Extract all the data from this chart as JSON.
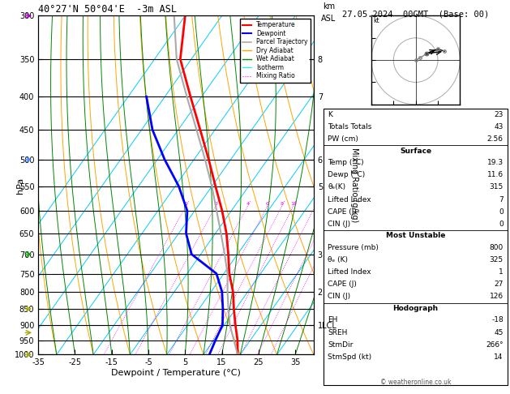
{
  "title_left": "40°27'N 50°04'E  -3m ASL",
  "title_right": "27.05.2024  00GMT  (Base: 00)",
  "xlabel": "Dewpoint / Temperature (°C)",
  "ylabel_left": "hPa",
  "ylabel_right": "Mixing Ratio (g/kg)",
  "pressure_ticks": [
    300,
    350,
    400,
    450,
    500,
    550,
    600,
    650,
    700,
    750,
    800,
    850,
    900,
    950,
    1000
  ],
  "temp_min": -35,
  "temp_max": 40,
  "skew_factor": 65.0,
  "temperature_profile": {
    "pressure": [
      1000,
      950,
      900,
      850,
      800,
      750,
      700,
      650,
      600,
      550,
      500,
      450,
      400,
      350,
      300
    ],
    "temperature": [
      19.3,
      16.5,
      13.0,
      9.5,
      6.0,
      1.5,
      -2.5,
      -7.0,
      -12.5,
      -19.0,
      -26.0,
      -34.0,
      -43.0,
      -53.0,
      -60.0
    ],
    "color": "#ff0000",
    "linewidth": 2.0
  },
  "dewpoint_profile": {
    "pressure": [
      1000,
      950,
      900,
      850,
      800,
      750,
      700,
      650,
      600,
      550,
      500,
      450,
      400
    ],
    "temperature": [
      11.6,
      10.5,
      9.5,
      6.5,
      3.0,
      -2.0,
      -12.5,
      -18.0,
      -22.0,
      -29.0,
      -38.0,
      -47.0,
      -55.0
    ],
    "color": "#0000ff",
    "linewidth": 2.0
  },
  "parcel_profile": {
    "pressure": [
      1000,
      950,
      900,
      850,
      800,
      750,
      700,
      650,
      600,
      550,
      500,
      450,
      400,
      350,
      300
    ],
    "temperature": [
      19.3,
      15.5,
      11.5,
      8.0,
      4.5,
      1.0,
      -3.5,
      -8.5,
      -14.0,
      -20.0,
      -27.0,
      -35.0,
      -44.0,
      -54.0,
      -63.0
    ],
    "color": "#aaaaaa",
    "linewidth": 1.5
  },
  "mixing_ratio_lines": [
    1,
    2,
    4,
    6,
    8,
    10,
    15,
    20,
    25
  ],
  "mixing_ratio_color": "#ff00ff",
  "isotherm_color": "#00ccff",
  "dry_adiabat_color": "#ffa500",
  "wet_adiabat_color": "#008800",
  "stats": {
    "K": 23,
    "Totals_Totals": 43,
    "PW_cm": 2.56,
    "Surface_Temp": 19.3,
    "Surface_Dewp": 11.6,
    "Surface_theta_e": 315,
    "Surface_LI": 7,
    "Surface_CAPE": 0,
    "Surface_CIN": 0,
    "MU_Pressure": 800,
    "MU_theta_e": 325,
    "MU_LI": 1,
    "MU_CAPE": 27,
    "MU_CIN": 126,
    "EH": -18,
    "SREH": 45,
    "StmDir": 266,
    "StmSpd": 14
  },
  "km_labels": {
    "350": "8",
    "400": "7",
    "500": "6",
    "550": "5",
    "700": "3",
    "800": "2",
    "900": "1LCL"
  },
  "wind_levels": [
    {
      "pressure": 300,
      "color": "#aa00cc"
    },
    {
      "pressure": 500,
      "color": "#4488ff"
    },
    {
      "pressure": 700,
      "color": "#00aa00"
    },
    {
      "pressure": 850,
      "color": "#aaaa00"
    },
    {
      "pressure": 925,
      "color": "#aaaa00"
    },
    {
      "pressure": 1000,
      "color": "#aaaa00"
    }
  ]
}
